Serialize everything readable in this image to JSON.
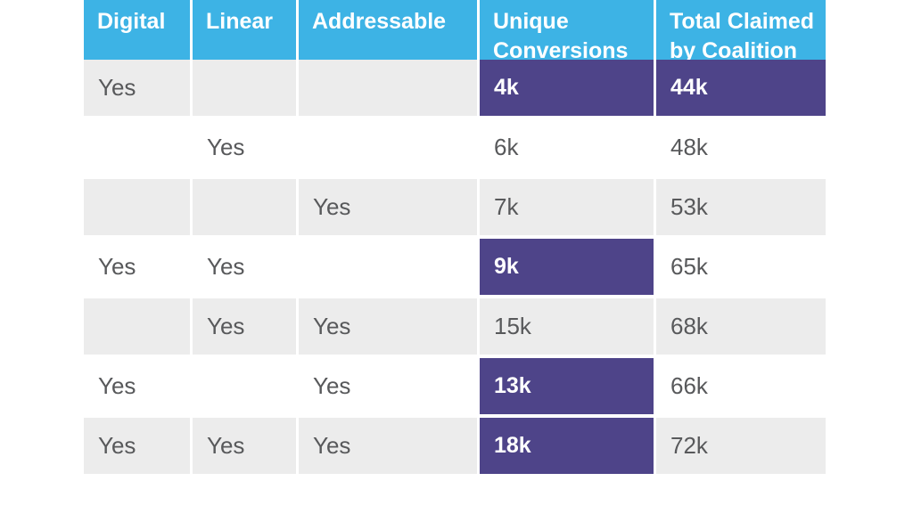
{
  "chart_data": {
    "type": "table",
    "title": "",
    "columns": [
      "Digital",
      "Linear",
      "Addressable",
      "Unique Conversions",
      "Total Claimed by Coalition"
    ],
    "rows": [
      {
        "cells": [
          "Yes",
          "",
          "",
          "4k",
          "44k"
        ],
        "highlighted_columns": [
          3,
          4
        ]
      },
      {
        "cells": [
          "",
          "Yes",
          "",
          "6k",
          "48k"
        ],
        "highlighted_columns": []
      },
      {
        "cells": [
          "",
          "",
          "Yes",
          "7k",
          "53k"
        ],
        "highlighted_columns": []
      },
      {
        "cells": [
          "Yes",
          "Yes",
          "",
          "9k",
          "65k"
        ],
        "highlighted_columns": [
          3
        ]
      },
      {
        "cells": [
          "",
          "Yes",
          "Yes",
          "15k",
          "68k"
        ],
        "highlighted_columns": []
      },
      {
        "cells": [
          "Yes",
          "",
          "Yes",
          "13k",
          "66k"
        ],
        "highlighted_columns": [
          3
        ]
      },
      {
        "cells": [
          "Yes",
          "Yes",
          "Yes",
          "18k",
          "72k"
        ],
        "highlighted_columns": [
          3
        ]
      }
    ]
  },
  "colors": {
    "header_bg": "#3DB3E5",
    "header_text": "#FFFFFF",
    "highlight_bg": "#4E4489",
    "row_stripe": "#ECECEC",
    "body_text": "#58595B"
  }
}
